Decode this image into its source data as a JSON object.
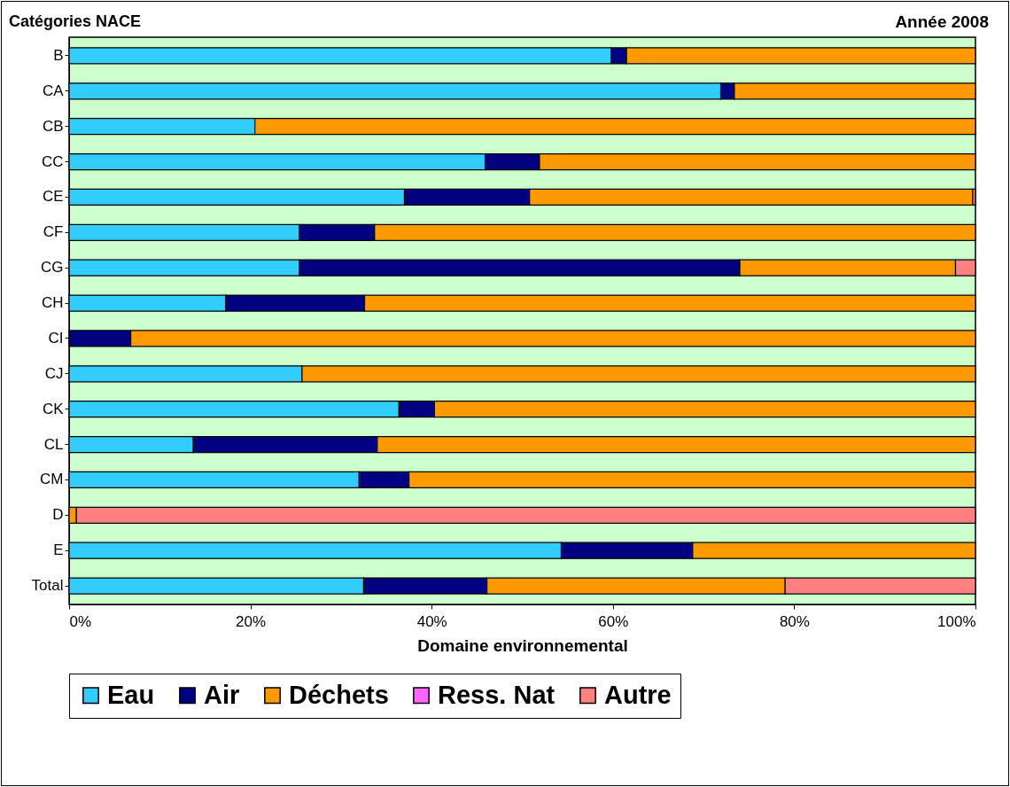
{
  "chart_data": {
    "type": "bar",
    "orientation": "horizontal",
    "stacked": true,
    "title": "Catégories NACE",
    "subtitle": "Année 2008",
    "xlabel": "Domaine environnemental",
    "categories": [
      "B",
      "CA",
      "CB",
      "CC",
      "CE",
      "CF",
      "CG",
      "CH",
      "CI",
      "CJ",
      "CK",
      "CL",
      "CM",
      "D",
      "E",
      "Total"
    ],
    "series": [
      {
        "name": "Eau",
        "color": "#33ccff",
        "values": [
          59.8,
          71.9,
          20.5,
          45.9,
          37.0,
          25.4,
          25.4,
          17.3,
          0,
          25.7,
          36.4,
          13.7,
          32.0,
          0,
          54.3,
          32.5
        ]
      },
      {
        "name": "Air",
        "color": "#000080",
        "values": [
          1.7,
          1.5,
          0,
          6.0,
          13.8,
          8.3,
          48.6,
          15.3,
          6.8,
          0,
          3.9,
          20.3,
          5.5,
          0,
          14.5,
          13.6
        ]
      },
      {
        "name": "Déchets",
        "color": "#ff9900",
        "values": [
          38.5,
          26.6,
          79.5,
          48.1,
          48.9,
          66.3,
          23.8,
          67.4,
          93.2,
          74.3,
          59.7,
          66.0,
          62.5,
          0.8,
          31.2,
          32.9
        ]
      },
      {
        "name": "Ress. Nat",
        "color": "#ff66ff",
        "values": [
          0,
          0,
          0,
          0,
          0,
          0,
          0,
          0,
          0,
          0,
          0,
          0,
          0,
          0,
          0,
          0
        ]
      },
      {
        "name": "Autre",
        "color": "#ff8080",
        "values": [
          0,
          0,
          0,
          0,
          0.3,
          0,
          2.2,
          0,
          0,
          0,
          0,
          0,
          0,
          99.2,
          0,
          21.0
        ]
      }
    ],
    "xlim": [
      0,
      100
    ],
    "xticks": [
      {
        "value": 0,
        "label": "0%"
      },
      {
        "value": 20,
        "label": "20%"
      },
      {
        "value": 40,
        "label": "40%"
      },
      {
        "value": 60,
        "label": "60%"
      },
      {
        "value": 80,
        "label": "80%"
      },
      {
        "value": 100,
        "label": "100%"
      }
    ],
    "grid": false,
    "legend": "bottom"
  }
}
